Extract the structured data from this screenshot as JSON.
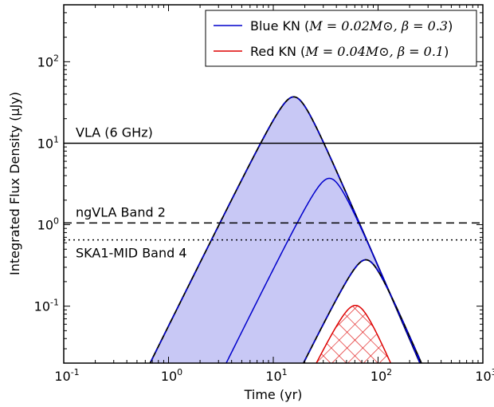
{
  "chart_data": {
    "type": "line",
    "xlabel": "Time (yr)",
    "ylabel": "Integrated Flux Density (μJy)",
    "xscale": "log",
    "yscale": "log",
    "xlim": [
      0.1,
      1000
    ],
    "ylim": [
      0.02,
      500
    ],
    "grid": false,
    "legend_position": "top-right",
    "x_ticks": [
      {
        "value": 0.1,
        "base": "10",
        "exp": "-1"
      },
      {
        "value": 1,
        "base": "10",
        "exp": "0"
      },
      {
        "value": 10,
        "base": "10",
        "exp": "1"
      },
      {
        "value": 100,
        "base": "10",
        "exp": "2"
      },
      {
        "value": 1000,
        "base": "10",
        "exp": "3"
      }
    ],
    "y_ticks": [
      {
        "value": 0.1,
        "base": "10",
        "exp": "-1"
      },
      {
        "value": 1,
        "base": "10",
        "exp": "0"
      },
      {
        "value": 10,
        "base": "10",
        "exp": "1"
      },
      {
        "value": 100,
        "base": "10",
        "exp": "2"
      }
    ],
    "reference_lines": [
      {
        "label": "VLA (6 GHz)",
        "y": 10,
        "style": "solid"
      },
      {
        "label": "ngVLA Band 2",
        "y": 1.05,
        "style": "dashed"
      },
      {
        "label": "SKA1-MID Band 4",
        "y": 0.65,
        "style": "dotted"
      }
    ],
    "series": [
      {
        "name": "Blue KN (M = 0.02M⊙, β = 0.3)",
        "legend_prefix": "Blue KN (",
        "legend_math": "M = 0.02M⊙, β = 0.3",
        "legend_suffix": ")",
        "color": "#0000cc",
        "fill": "#c8c8f5",
        "curves": [
          {
            "peak_t": 16,
            "peak_flux": 37,
            "rise_slope": 2.6,
            "decay_slope": 3.0
          },
          {
            "peak_t": 35,
            "peak_flux": 3.7,
            "rise_slope": 2.6,
            "decay_slope": 3.0
          },
          {
            "peak_t": 78,
            "peak_flux": 0.37,
            "rise_slope": 2.6,
            "decay_slope": 3.0
          }
        ]
      },
      {
        "name": "Red KN (M = 0.04M⊙, β = 0.1)",
        "legend_prefix": "Red KN (",
        "legend_math": "M = 0.04M⊙, β = 0.1",
        "legend_suffix": ")",
        "color": "#dd0000",
        "curves": [
          {
            "peak_t": 62,
            "peak_flux": 0.102,
            "rise_slope": 2.6,
            "decay_slope": 3.0
          }
        ]
      }
    ]
  }
}
